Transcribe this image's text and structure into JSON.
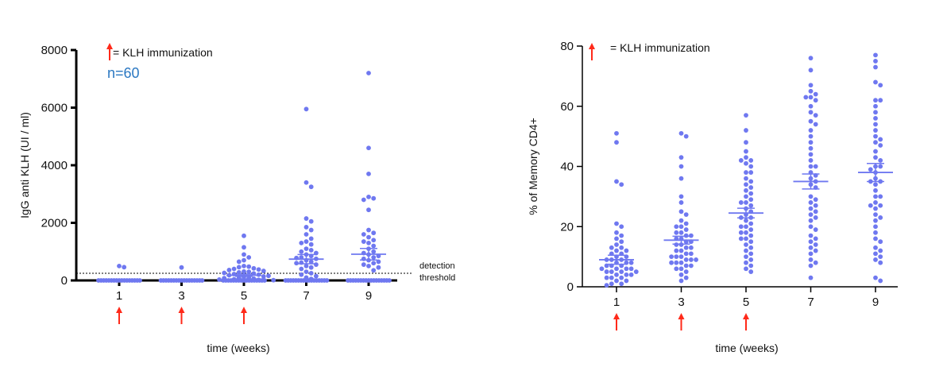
{
  "legend": {
    "text": "= KLH immunization",
    "arrow_color": "#ff2a1a"
  },
  "colors": {
    "points": "#6f78f0",
    "mean_bar": "#6f78f0",
    "axis": "#000000"
  },
  "chart_data": [
    {
      "type": "scatter",
      "subtype": "dot-plot-mean-sem",
      "xlabel": "time (weeks)",
      "ylabel": "IgG anti KLH (UI / ml)",
      "categories": [
        "1",
        "3",
        "5",
        "7",
        "9"
      ],
      "ylim": [
        0,
        8000
      ],
      "yticks": [
        "0",
        "2000",
        "4000",
        "6000",
        "8000"
      ],
      "annotation": "n=60",
      "threshold": {
        "value": 250,
        "label_line1": "detection",
        "label_line2": "threshold"
      },
      "immunization_weeks": [
        "1",
        "3",
        "5"
      ],
      "series": [
        {
          "category": "1",
          "values": [
            0,
            0,
            0,
            0,
            0,
            0,
            0,
            0,
            0,
            0,
            0,
            0,
            0,
            0,
            0,
            0,
            0,
            0,
            0,
            0,
            0,
            0,
            0,
            0,
            0,
            0,
            0,
            0,
            0,
            0,
            0,
            0,
            0,
            0,
            0,
            0,
            0,
            0,
            0,
            0,
            0,
            0,
            0,
            0,
            0,
            0,
            0,
            0,
            0,
            0,
            0,
            0,
            0,
            0,
            0,
            0,
            0,
            0,
            460,
            500
          ],
          "mean": 16,
          "sem": 11
        },
        {
          "category": "3",
          "values": [
            0,
            0,
            0,
            0,
            0,
            0,
            0,
            0,
            0,
            0,
            0,
            0,
            0,
            0,
            0,
            0,
            0,
            0,
            0,
            0,
            0,
            0,
            0,
            0,
            0,
            0,
            0,
            0,
            0,
            0,
            0,
            0,
            0,
            0,
            0,
            0,
            0,
            0,
            0,
            0,
            0,
            0,
            0,
            0,
            0,
            0,
            0,
            0,
            0,
            0,
            0,
            0,
            0,
            0,
            0,
            0,
            0,
            0,
            0,
            450
          ],
          "mean": 8,
          "sem": 7
        },
        {
          "category": "5",
          "values": [
            1550,
            1150,
            900,
            800,
            700,
            650,
            500,
            480,
            460,
            420,
            400,
            380,
            360,
            330,
            310,
            300,
            280,
            260,
            240,
            220,
            200,
            180,
            160,
            140,
            120,
            100,
            90,
            80,
            60,
            40,
            30,
            20,
            10,
            0,
            0,
            0,
            0,
            0,
            0,
            0,
            0,
            0,
            0,
            0,
            0,
            0,
            0,
            0,
            0,
            0,
            0,
            0,
            0,
            0,
            0,
            0,
            0,
            0,
            0,
            0
          ],
          "mean": 180,
          "sem": 40
        },
        {
          "category": "7",
          "values": [
            5950,
            3400,
            3250,
            2150,
            2050,
            1850,
            1750,
            1600,
            1450,
            1350,
            1300,
            1250,
            1100,
            1050,
            1000,
            950,
            900,
            850,
            800,
            780,
            750,
            700,
            650,
            620,
            600,
            550,
            500,
            450,
            400,
            300,
            250,
            200,
            150,
            100,
            50,
            0,
            0,
            0,
            0,
            0,
            0,
            0,
            0,
            0,
            0,
            0,
            0,
            0,
            0,
            0,
            0,
            0,
            0,
            0,
            0,
            0,
            0,
            0,
            0,
            0
          ],
          "mean": 740,
          "sem": 160
        },
        {
          "category": "9",
          "values": [
            7200,
            4600,
            3700,
            2900,
            2850,
            2800,
            2450,
            1750,
            1650,
            1600,
            1500,
            1400,
            1350,
            1300,
            1200,
            1100,
            1000,
            950,
            900,
            850,
            800,
            750,
            700,
            650,
            600,
            550,
            500,
            450,
            350,
            0,
            0,
            0,
            0,
            0,
            0,
            0,
            0,
            0,
            0,
            0,
            0,
            0,
            0,
            0,
            0,
            0,
            0,
            0,
            0,
            0,
            0,
            0,
            0,
            0,
            0,
            0,
            0,
            0,
            0,
            0
          ],
          "mean": 910,
          "sem": 200
        }
      ]
    },
    {
      "type": "scatter",
      "subtype": "dot-plot-mean-sem",
      "xlabel": "time (weeks)",
      "ylabel": "% of Memory CD4+",
      "categories": [
        "1",
        "3",
        "5",
        "7",
        "9"
      ],
      "ylim": [
        0,
        80
      ],
      "yticks": [
        "0",
        "20",
        "40",
        "60",
        "80"
      ],
      "immunization_weeks": [
        "1",
        "3",
        "5"
      ],
      "series": [
        {
          "category": "1",
          "values": [
            51,
            48,
            35,
            34,
            21,
            20,
            18,
            17,
            16,
            15,
            14,
            13,
            13,
            12,
            12,
            11,
            11,
            10,
            10,
            9,
            9,
            9,
            8,
            8,
            8,
            7,
            7,
            7,
            6,
            6,
            6,
            6,
            5,
            5,
            5,
            5,
            4,
            4,
            4,
            3,
            3,
            3,
            2,
            2,
            1,
            1,
            0.5
          ],
          "mean": 9,
          "sem": 1.5
        },
        {
          "category": "3",
          "values": [
            51,
            50,
            43,
            40,
            36,
            30,
            28,
            25,
            24,
            22,
            21,
            20,
            20,
            19,
            18,
            18,
            17,
            17,
            16,
            16,
            15,
            15,
            14,
            14,
            13,
            13,
            12,
            12,
            11,
            11,
            10,
            10,
            10,
            9,
            9,
            9,
            8,
            8,
            8,
            7,
            7,
            6,
            6,
            5,
            4,
            3,
            2
          ],
          "mean": 15.5,
          "sem": 1.3
        },
        {
          "category": "5",
          "values": [
            57,
            52,
            48,
            45,
            43,
            42,
            42,
            41,
            40,
            38,
            38,
            36,
            35,
            34,
            33,
            32,
            31,
            30,
            29,
            28,
            28,
            27,
            26,
            25,
            24,
            23,
            23,
            22,
            21,
            20,
            20,
            19,
            18,
            18,
            17,
            16,
            16,
            15,
            14,
            13,
            12,
            11,
            10,
            9,
            8,
            7,
            6,
            5
          ],
          "mean": 24.5,
          "sem": 1.6
        },
        {
          "category": "7",
          "values": [
            76,
            72,
            67,
            65,
            64,
            63,
            63,
            62,
            60,
            58,
            57,
            55,
            54,
            52,
            50,
            48,
            46,
            44,
            42,
            40,
            40,
            38,
            37,
            36,
            35,
            34,
            33,
            30,
            29,
            28,
            27,
            26,
            25,
            24,
            23,
            22,
            20,
            19,
            17,
            16,
            15,
            14,
            13,
            12,
            11,
            9,
            8,
            7,
            3
          ],
          "mean": 35,
          "sem": 2.5
        },
        {
          "category": "9",
          "values": [
            77,
            75,
            73,
            68,
            67,
            62,
            62,
            60,
            58,
            56,
            54,
            52,
            50,
            49,
            48,
            47,
            45,
            43,
            42,
            40,
            40,
            39,
            38,
            36,
            35,
            35,
            34,
            32,
            30,
            30,
            28,
            27,
            27,
            26,
            24,
            23,
            22,
            20,
            18,
            16,
            15,
            13,
            12,
            11,
            10,
            9,
            8,
            3,
            2
          ],
          "mean": 38,
          "sem": 3
        }
      ]
    }
  ]
}
